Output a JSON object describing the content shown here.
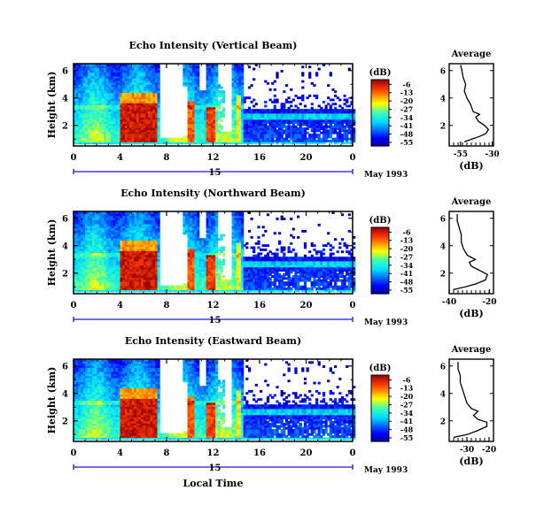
{
  "chart_data": [
    {
      "type": "heatmap",
      "title": "Echo Intensity (Vertical Beam)",
      "ylabel": "Height (km)",
      "x_ticks": [
        "0",
        "4",
        "8",
        "12",
        "16",
        "20",
        "0"
      ],
      "y_ticks": [
        "2",
        "4",
        "6"
      ],
      "date_hour": "15",
      "date_label": "May 1993",
      "xlim": [
        0,
        24
      ],
      "ylim": [
        0.5,
        6.5
      ],
      "colorbar": {
        "label": "(dB)",
        "ticks": [
          "-6",
          "-13",
          "-20",
          "-27",
          "-34",
          "-41",
          "-48",
          "-55"
        ],
        "range": [
          -58,
          -2
        ]
      },
      "average": {
        "title": "Average",
        "xlabel": "(dB)",
        "x_ticks": [
          "-55",
          "-30"
        ],
        "xlim": [
          -64,
          -29
        ],
        "y_ticks": [
          "2",
          "4",
          "6"
        ],
        "profile": [
          [
            -52,
            0.8
          ],
          [
            -46,
            1.0
          ],
          [
            -40,
            1.2
          ],
          [
            -35,
            1.4
          ],
          [
            -33,
            1.7
          ],
          [
            -36,
            2.0
          ],
          [
            -41,
            2.3
          ],
          [
            -43,
            2.6
          ],
          [
            -40,
            2.8
          ],
          [
            -45,
            3.0
          ],
          [
            -47,
            3.5
          ],
          [
            -50,
            4.0
          ],
          [
            -52,
            4.5
          ],
          [
            -51,
            5.0
          ],
          [
            -53,
            5.5
          ],
          [
            -54,
            6.0
          ],
          [
            -55,
            6.4
          ]
        ]
      }
    },
    {
      "type": "heatmap",
      "title": "Echo Intensity (Northward Beam)",
      "ylabel": "Height (km)",
      "x_ticks": [
        "0",
        "4",
        "8",
        "12",
        "16",
        "20",
        "0"
      ],
      "y_ticks": [
        "2",
        "4",
        "6"
      ],
      "date_hour": "15",
      "date_label": "May 1993",
      "xlim": [
        0,
        24
      ],
      "ylim": [
        0.5,
        6.5
      ],
      "colorbar": {
        "label": "(dB)",
        "ticks": [
          "-6",
          "-13",
          "-20",
          "-27",
          "-34",
          "-41",
          "-48",
          "-55"
        ],
        "range": [
          -58,
          -2
        ]
      },
      "average": {
        "title": "Average",
        "xlabel": "(dB)",
        "x_ticks": [
          "-40",
          "-20"
        ],
        "xlim": [
          -40,
          -18
        ],
        "y_ticks": [
          "2",
          "4",
          "6"
        ],
        "profile": [
          [
            -38,
            0.8
          ],
          [
            -32,
            1.0
          ],
          [
            -27,
            1.2
          ],
          [
            -22,
            1.5
          ],
          [
            -21,
            1.9
          ],
          [
            -25,
            2.2
          ],
          [
            -29,
            2.5
          ],
          [
            -30,
            2.8
          ],
          [
            -27,
            3.0
          ],
          [
            -31,
            3.3
          ],
          [
            -33,
            3.8
          ],
          [
            -34,
            4.3
          ],
          [
            -34,
            4.8
          ],
          [
            -35,
            5.3
          ],
          [
            -36,
            5.8
          ],
          [
            -36,
            6.3
          ]
        ]
      }
    },
    {
      "type": "heatmap",
      "title": "Echo Intensity (Eastward Beam)",
      "ylabel": "Height (km)",
      "xlabel": "Local Time",
      "x_ticks": [
        "0",
        "4",
        "8",
        "12",
        "16",
        "20",
        "0"
      ],
      "y_ticks": [
        "2",
        "4",
        "6"
      ],
      "date_hour": "15",
      "date_label": "May 1993",
      "xlim": [
        0,
        24
      ],
      "ylim": [
        0.5,
        6.5
      ],
      "colorbar": {
        "label": "(dB)",
        "ticks": [
          "-6",
          "-13",
          "-20",
          "-27",
          "-34",
          "-41",
          "-48",
          "-55"
        ],
        "range": [
          -58,
          -2
        ]
      },
      "average": {
        "title": "Average",
        "xlabel": "(dB)",
        "x_ticks": [
          "-30",
          "-20"
        ],
        "xlim": [
          -38,
          -18
        ],
        "y_ticks": [
          "2",
          "4",
          "6"
        ],
        "profile": [
          [
            -36,
            0.8
          ],
          [
            -30,
            1.0
          ],
          [
            -25,
            1.3
          ],
          [
            -21,
            1.6
          ],
          [
            -21,
            1.9
          ],
          [
            -25,
            2.1
          ],
          [
            -27,
            2.4
          ],
          [
            -25,
            2.7
          ],
          [
            -28,
            2.9
          ],
          [
            -30,
            3.3
          ],
          [
            -31,
            3.8
          ],
          [
            -32,
            4.3
          ],
          [
            -33,
            4.8
          ],
          [
            -33,
            5.3
          ],
          [
            -34,
            5.8
          ],
          [
            -34,
            6.3
          ]
        ]
      }
    }
  ]
}
